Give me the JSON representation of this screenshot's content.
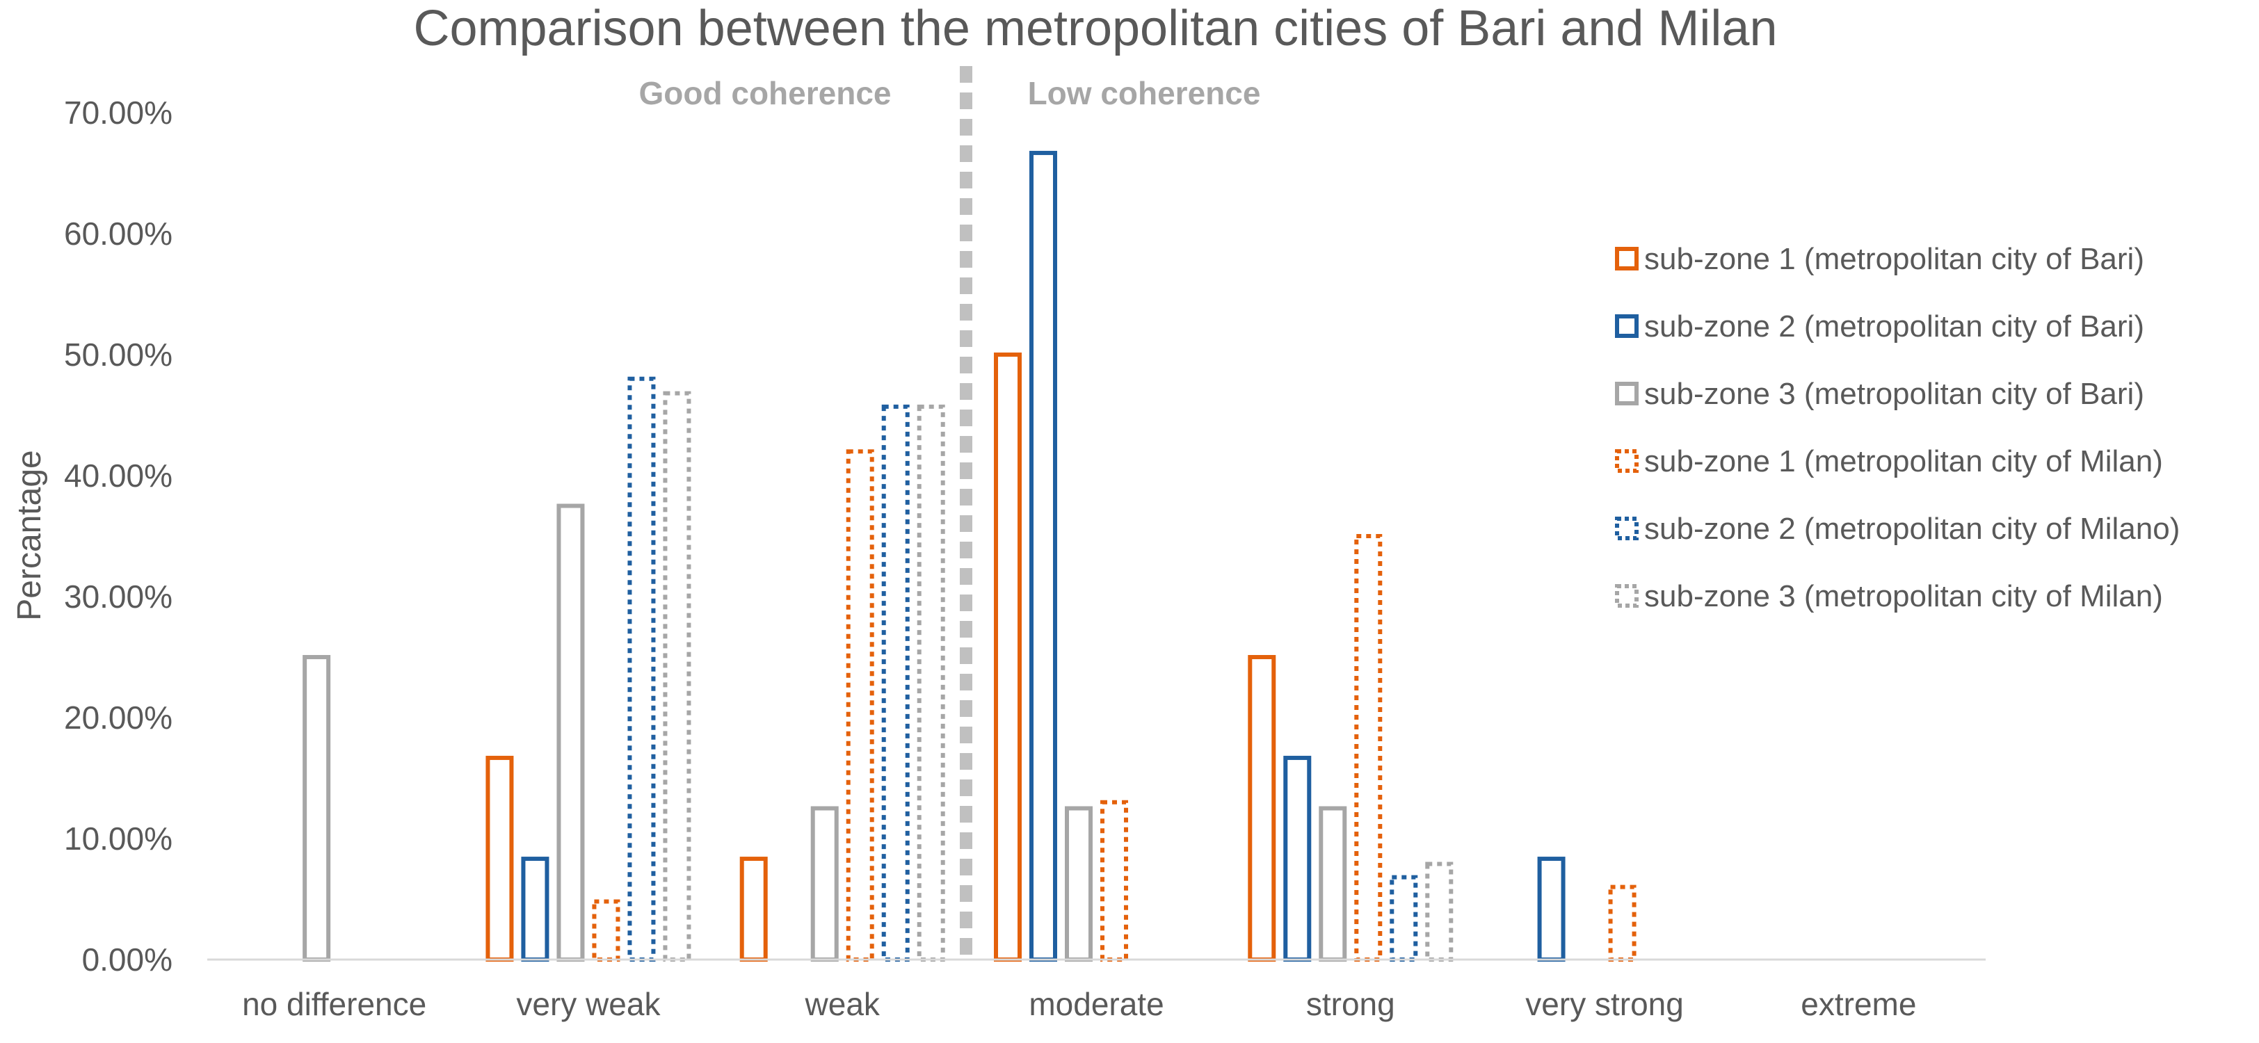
{
  "chart_data": {
    "type": "bar",
    "title": "Comparison between the metropolitan cities of Bari and Milan",
    "xlabel": "",
    "ylabel": "Percantage",
    "ylim": [
      0,
      0.7
    ],
    "yticks": [
      "0.00%",
      "10.00%",
      "20.00%",
      "30.00%",
      "40.00%",
      "50.00%",
      "60.00%",
      "70.00%"
    ],
    "categories": [
      "no difference",
      "very weak",
      "weak",
      "moderate",
      "strong",
      "very strong",
      "extreme"
    ],
    "annotations": {
      "left": "Good coherence",
      "right": "Low coherence"
    },
    "legend_position": "right",
    "series": [
      {
        "name": "sub-zone 1 (metropolitan city of Bari)",
        "color": "#e4610b",
        "dashed": false,
        "values": [
          0,
          0.1667,
          0.0833,
          0.5,
          0.25,
          0,
          0
        ]
      },
      {
        "name": "sub-zone 2 (metropolitan city of Bari)",
        "color": "#1f5fa0",
        "dashed": false,
        "values": [
          0,
          0.0833,
          0,
          0.6667,
          0.1667,
          0.0833,
          0
        ]
      },
      {
        "name": "sub-zone 3 (metropolitan city of Bari)",
        "color": "#a6a6a6",
        "dashed": false,
        "values": [
          0.25,
          0.375,
          0.125,
          0.125,
          0.125,
          0,
          0
        ]
      },
      {
        "name": "sub-zone 1 (metropolitan city of Milan)",
        "color": "#e4610b",
        "dashed": true,
        "values": [
          0,
          0.048,
          0.42,
          0.13,
          0.35,
          0.06,
          0
        ]
      },
      {
        "name": "sub-zone 2 (metropolitan city of Milano)",
        "color": "#1f5fa0",
        "dashed": true,
        "values": [
          0,
          0.48,
          0.457,
          0,
          0.068,
          0,
          0
        ]
      },
      {
        "name": "sub-zone 3 (metropolitan city of Milan)",
        "color": "#a6a6a6",
        "dashed": true,
        "values": [
          0,
          0.468,
          0.457,
          0,
          0.079,
          0,
          0
        ]
      }
    ]
  }
}
